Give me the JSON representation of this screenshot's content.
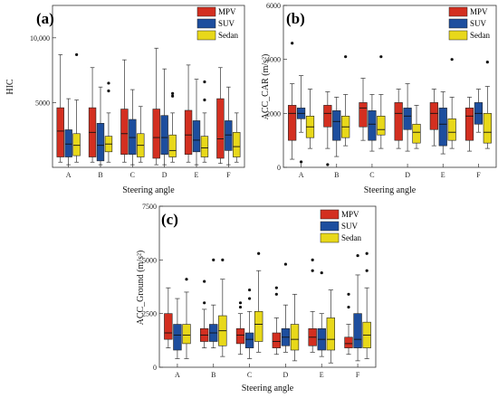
{
  "chart_data": [
    {
      "panel": "(a)",
      "type": "boxplot",
      "xlabel": "Steering angle",
      "ylabel": "HIC",
      "categories": [
        "A",
        "B",
        "C",
        "D",
        "E",
        "F"
      ],
      "ylim": [
        0,
        12500
      ],
      "yticks": [
        {
          "v": 5000,
          "label": "5000"
        },
        {
          "v": 10000,
          "label": "10,000"
        }
      ],
      "legend": "top-right",
      "series": [
        {
          "name": "MPV",
          "color": "#d32f20",
          "boxes": [
            {
              "min": 400,
              "q1": 800,
              "median": 2800,
              "q3": 4600,
              "max": 8700,
              "outliers": []
            },
            {
              "min": 400,
              "q1": 800,
              "median": 2700,
              "q3": 4600,
              "max": 7700,
              "outliers": []
            },
            {
              "min": 400,
              "q1": 1000,
              "median": 2600,
              "q3": 4500,
              "max": 8300,
              "outliers": []
            },
            {
              "min": 200,
              "q1": 700,
              "median": 2300,
              "q3": 4500,
              "max": 9200,
              "outliers": []
            },
            {
              "min": 400,
              "q1": 1000,
              "median": 2500,
              "q3": 4400,
              "max": 7900,
              "outliers": []
            },
            {
              "min": 300,
              "q1": 700,
              "median": 2200,
              "q3": 5300,
              "max": 7700,
              "outliers": []
            }
          ]
        },
        {
          "name": "SUV",
          "color": "#1d4e9e",
          "boxes": [
            {
              "min": 200,
              "q1": 800,
              "median": 1800,
              "q3": 2900,
              "max": 5300,
              "outliers": []
            },
            {
              "min": 200,
              "q1": 500,
              "median": 1700,
              "q3": 3400,
              "max": 6200,
              "outliers": []
            },
            {
              "min": 200,
              "q1": 1000,
              "median": 2300,
              "q3": 3700,
              "max": 6000,
              "outliers": []
            },
            {
              "min": 200,
              "q1": 1000,
              "median": 2300,
              "q3": 4000,
              "max": 7600,
              "outliers": []
            },
            {
              "min": 200,
              "q1": 1200,
              "median": 2100,
              "q3": 3600,
              "max": 6800,
              "outliers": []
            },
            {
              "min": 200,
              "q1": 1300,
              "median": 2500,
              "q3": 3600,
              "max": 6200,
              "outliers": []
            }
          ]
        },
        {
          "name": "Sedan",
          "color": "#e8d81a",
          "boxes": [
            {
              "min": 400,
              "q1": 900,
              "median": 1700,
              "q3": 2600,
              "max": 5200,
              "outliers": [
                8700
              ]
            },
            {
              "min": 400,
              "q1": 1200,
              "median": 1800,
              "q3": 2400,
              "max": 4200,
              "outliers": [
                6500,
                5900
              ]
            },
            {
              "min": 400,
              "q1": 800,
              "median": 1700,
              "q3": 2600,
              "max": 4700,
              "outliers": []
            },
            {
              "min": 400,
              "q1": 800,
              "median": 1300,
              "q3": 2500,
              "max": 4200,
              "outliers": [
                5500,
                5700
              ]
            },
            {
              "min": 400,
              "q1": 800,
              "median": 1500,
              "q3": 2400,
              "max": 4200,
              "outliers": [
                5200,
                6600
              ]
            },
            {
              "min": 400,
              "q1": 800,
              "median": 1600,
              "q3": 2700,
              "max": 4200,
              "outliers": []
            }
          ]
        }
      ]
    },
    {
      "panel": "(b)",
      "type": "boxplot",
      "xlabel": "Steering angle",
      "ylabel": "ACC_CAR (m/s²)",
      "categories": [
        "A",
        "B",
        "C",
        "D",
        "E",
        "F"
      ],
      "ylim": [
        0,
        6000
      ],
      "yticks": [
        {
          "v": 0,
          "label": "0"
        },
        {
          "v": 2000,
          "label": "2000"
        },
        {
          "v": 4000,
          "label": "4000"
        },
        {
          "v": 6000,
          "label": "6000"
        }
      ],
      "legend": "top-right",
      "series": [
        {
          "name": "MPV",
          "color": "#d32f20",
          "boxes": [
            {
              "min": 300,
              "q1": 1000,
              "median": 2000,
              "q3": 2300,
              "max": 3100,
              "outliers": [
                4600
              ]
            },
            {
              "min": 700,
              "q1": 1500,
              "median": 2000,
              "q3": 2300,
              "max": 2800,
              "outliers": [
                100
              ]
            },
            {
              "min": 1000,
              "q1": 1500,
              "median": 2200,
              "q3": 2400,
              "max": 3300,
              "outliers": []
            },
            {
              "min": 700,
              "q1": 1000,
              "median": 2000,
              "q3": 2400,
              "max": 2900,
              "outliers": []
            },
            {
              "min": 800,
              "q1": 1400,
              "median": 2000,
              "q3": 2400,
              "max": 2900,
              "outliers": []
            },
            {
              "min": 600,
              "q1": 1000,
              "median": 1900,
              "q3": 2200,
              "max": 2600,
              "outliers": []
            }
          ]
        },
        {
          "name": "SUV",
          "color": "#1d4e9e",
          "boxes": [
            {
              "min": 1300,
              "q1": 1800,
              "median": 2000,
              "q3": 2200,
              "max": 3400,
              "outliers": [
                200
              ]
            },
            {
              "min": 400,
              "q1": 1000,
              "median": 1700,
              "q3": 2100,
              "max": 2600,
              "outliers": []
            },
            {
              "min": 600,
              "q1": 1000,
              "median": 1600,
              "q3": 2100,
              "max": 2700,
              "outliers": []
            },
            {
              "min": 600,
              "q1": 1400,
              "median": 1900,
              "q3": 2200,
              "max": 3100,
              "outliers": []
            },
            {
              "min": 500,
              "q1": 800,
              "median": 1600,
              "q3": 2200,
              "max": 2800,
              "outliers": []
            },
            {
              "min": 1300,
              "q1": 1600,
              "median": 2000,
              "q3": 2400,
              "max": 2900,
              "outliers": []
            }
          ]
        },
        {
          "name": "Sedan",
          "color": "#e8d81a",
          "boxes": [
            {
              "min": 700,
              "q1": 1100,
              "median": 1500,
              "q3": 1900,
              "max": 2900,
              "outliers": []
            },
            {
              "min": 800,
              "q1": 1100,
              "median": 1500,
              "q3": 1900,
              "max": 2700,
              "outliers": [
                4100
              ]
            },
            {
              "min": 700,
              "q1": 1200,
              "median": 1400,
              "q3": 1900,
              "max": 2700,
              "outliers": [
                4100
              ]
            },
            {
              "min": 700,
              "q1": 900,
              "median": 1300,
              "q3": 1600,
              "max": 2300,
              "outliers": []
            },
            {
              "min": 700,
              "q1": 1000,
              "median": 1300,
              "q3": 1800,
              "max": 2600,
              "outliers": [
                4000
              ]
            },
            {
              "min": 700,
              "q1": 900,
              "median": 1300,
              "q3": 2000,
              "max": 3000,
              "outliers": [
                3900
              ]
            }
          ]
        }
      ]
    },
    {
      "panel": "(c)",
      "type": "boxplot",
      "xlabel": "Steering angle",
      "ylabel": "ACC_Ground (m/s²)",
      "categories": [
        "A",
        "B",
        "C",
        "D",
        "E",
        "F"
      ],
      "ylim": [
        0,
        7500
      ],
      "yticks": [
        {
          "v": 0,
          "label": "0"
        },
        {
          "v": 2500,
          "label": "2500"
        },
        {
          "v": 5000,
          "label": "5000"
        },
        {
          "v": 7500,
          "label": "7500"
        }
      ],
      "legend": "top-right",
      "series": [
        {
          "name": "MPV",
          "color": "#d32f20",
          "boxes": [
            {
              "min": 900,
              "q1": 1300,
              "median": 1600,
              "q3": 2500,
              "max": 3700,
              "outliers": []
            },
            {
              "min": 900,
              "q1": 1200,
              "median": 1500,
              "q3": 1800,
              "max": 2700,
              "outliers": [
                3000,
                4000
              ]
            },
            {
              "min": 600,
              "q1": 1100,
              "median": 1500,
              "q3": 1800,
              "max": 2500,
              "outliers": [
                2800,
                3000
              ]
            },
            {
              "min": 600,
              "q1": 900,
              "median": 1200,
              "q3": 1600,
              "max": 2300,
              "outliers": [
                3400,
                3700
              ]
            },
            {
              "min": 700,
              "q1": 1000,
              "median": 1400,
              "q3": 1800,
              "max": 2600,
              "outliers": [
                4500,
                5000
              ]
            },
            {
              "min": 600,
              "q1": 900,
              "median": 1100,
              "q3": 1400,
              "max": 2000,
              "outliers": [
                2800,
                3400
              ]
            }
          ]
        },
        {
          "name": "SUV",
          "color": "#1d4e9e",
          "boxes": [
            {
              "min": 400,
              "q1": 800,
              "median": 1500,
              "q3": 2000,
              "max": 3200,
              "outliers": []
            },
            {
              "min": 900,
              "q1": 1200,
              "median": 1600,
              "q3": 2000,
              "max": 2900,
              "outliers": [
                5000
              ]
            },
            {
              "min": 400,
              "q1": 900,
              "median": 1300,
              "q3": 1600,
              "max": 2600,
              "outliers": [
                3200,
                3600
              ]
            },
            {
              "min": 700,
              "q1": 1000,
              "median": 1400,
              "q3": 1800,
              "max": 2900,
              "outliers": [
                4800
              ]
            },
            {
              "min": 500,
              "q1": 800,
              "median": 1300,
              "q3": 1800,
              "max": 2500,
              "outliers": [
                4400
              ]
            },
            {
              "min": 300,
              "q1": 900,
              "median": 1300,
              "q3": 2500,
              "max": 4300,
              "outliers": [
                5200
              ]
            }
          ]
        },
        {
          "name": "Sedan",
          "color": "#e8d81a",
          "boxes": [
            {
              "min": 400,
              "q1": 1100,
              "median": 1500,
              "q3": 2000,
              "max": 3500,
              "outliers": [
                4100
              ]
            },
            {
              "min": 500,
              "q1": 1000,
              "median": 1700,
              "q3": 2400,
              "max": 4100,
              "outliers": [
                5000
              ]
            },
            {
              "min": 700,
              "q1": 1200,
              "median": 2000,
              "q3": 2600,
              "max": 4500,
              "outliers": [
                5300
              ]
            },
            {
              "min": 300,
              "q1": 800,
              "median": 1300,
              "q3": 2000,
              "max": 3400,
              "outliers": []
            },
            {
              "min": 200,
              "q1": 800,
              "median": 1300,
              "q3": 2300,
              "max": 3600,
              "outliers": []
            },
            {
              "min": 400,
              "q1": 900,
              "median": 1500,
              "q3": 2100,
              "max": 3700,
              "outliers": [
                4500,
                5300
              ]
            }
          ]
        }
      ]
    }
  ]
}
